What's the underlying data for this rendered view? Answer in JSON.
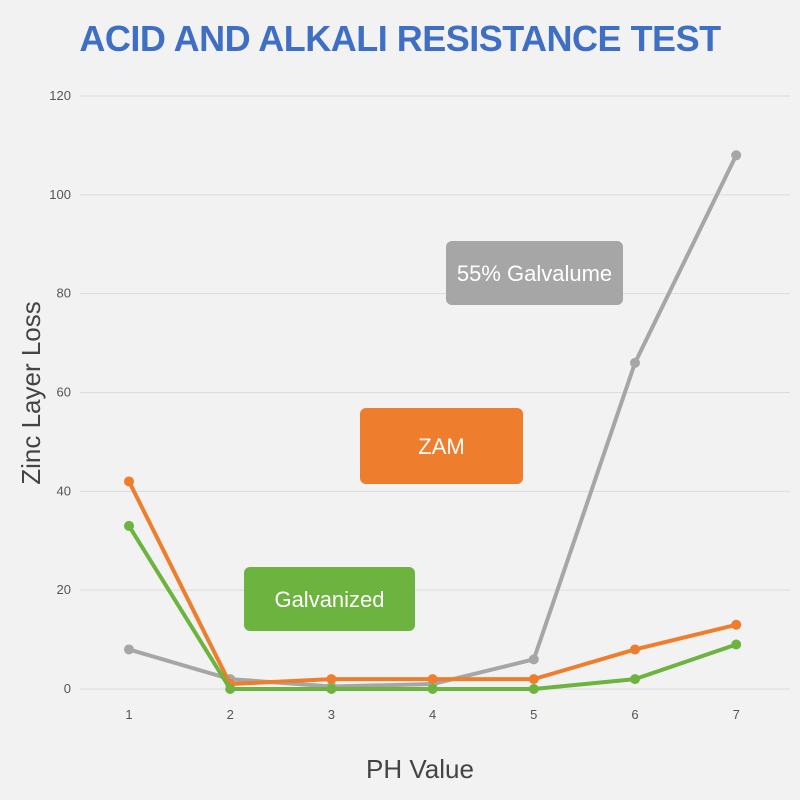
{
  "colors": {
    "background": "#f2f2f2",
    "title": "#3f6fc4",
    "grid": "#dcdcdc",
    "galvalume": "#a6a6a6",
    "zam": "#ef7d2e",
    "galvanized": "#6db33f"
  },
  "chart_data": {
    "type": "line",
    "title": "ACID AND ALKALI RESISTANCE TEST",
    "xlabel": "PH Value",
    "ylabel": "Zinc Layer Loss",
    "x": [
      1,
      2,
      3,
      4,
      5,
      6,
      7
    ],
    "ylim": [
      0,
      120
    ],
    "yticks": [
      0,
      20,
      40,
      60,
      80,
      100,
      120
    ],
    "grid": true,
    "series": [
      {
        "name": "55% Galvalume",
        "color": "#a6a6a6",
        "values": [
          8,
          2,
          0.5,
          1,
          6,
          66,
          108
        ]
      },
      {
        "name": "ZAM",
        "color": "#ef7d2e",
        "values": [
          42,
          1,
          2,
          2,
          2,
          8,
          13
        ]
      },
      {
        "name": "Galvanized",
        "color": "#6db33f",
        "values": [
          33,
          0,
          0,
          0,
          0,
          2,
          9
        ]
      }
    ]
  }
}
